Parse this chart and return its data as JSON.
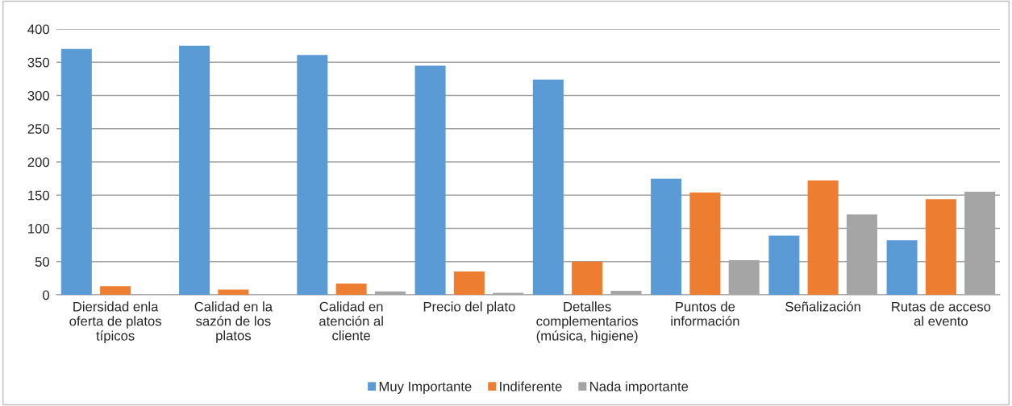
{
  "chart_data": {
    "type": "bar",
    "categories": [
      "Diersidad enla\noferta de platos\ntípicos",
      "Calidad en la\nsazón de los\nplatos",
      "Calidad en\natención al\ncliente",
      "Precio del plato",
      "Detalles\ncomplementarios\n(música, higiene)",
      "Puntos de\ninformación",
      "Señalización",
      "Rutas de acceso\nal evento"
    ],
    "series": [
      {
        "name": "Muy Importante",
        "color": "#5b9bd5",
        "values": [
          370,
          375,
          361,
          345,
          324,
          175,
          89,
          82
        ]
      },
      {
        "name": "Indiferente",
        "color": "#ed7d31",
        "values": [
          13,
          8,
          17,
          35,
          50,
          154,
          172,
          144
        ]
      },
      {
        "name": "Nada importante",
        "color": "#a5a5a5",
        "values": [
          null,
          null,
          5,
          3,
          6,
          52,
          121,
          155
        ]
      }
    ],
    "ylim": [
      0,
      400
    ],
    "yticks": [
      0,
      50,
      100,
      150,
      200,
      250,
      300,
      350,
      400
    ],
    "grid": "y",
    "legend": "bottom"
  }
}
